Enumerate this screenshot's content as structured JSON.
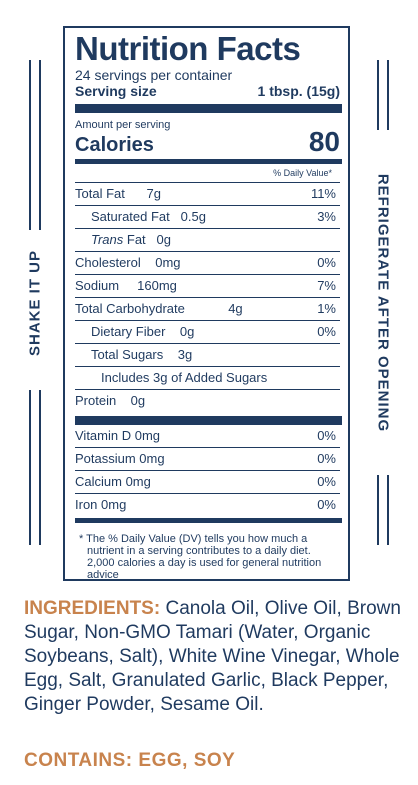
{
  "side": {
    "left_text": "SHAKE IT UP",
    "right_text": "REFRIGERATE AFTER OPENING"
  },
  "nutrition": {
    "title": "Nutrition Facts",
    "servings_per_container": "24 servings per container",
    "serving_size_label": "Serving size",
    "serving_size_value": "1 tbsp. (15g)",
    "amount_per_serving": "Amount per serving",
    "calories_label": "Calories",
    "calories_value": "80",
    "daily_value_header": "% Daily Value*",
    "rows": [
      {
        "label": "Total Fat",
        "amount": "7g",
        "dv": "11%"
      },
      {
        "label": "Saturated Fat",
        "amount": "0.5g",
        "dv": "3%"
      },
      {
        "label": "Trans",
        "suffix": "Fat",
        "amount": "0g",
        "dv": ""
      },
      {
        "label": "Cholesterol",
        "amount": "0mg",
        "dv": "0%"
      },
      {
        "label": "Sodium",
        "amount": "160mg",
        "dv": "7%"
      },
      {
        "label": "Total Carbohydrate",
        "amount": "4g",
        "dv": "1%"
      },
      {
        "label": "Dietary Fiber",
        "amount": "0g",
        "dv": "0%"
      },
      {
        "label": "Total Sugars",
        "amount": "3g",
        "dv": ""
      },
      {
        "label": "Includes 3g of Added Sugars",
        "amount": "",
        "dv": ""
      },
      {
        "label": "Protein",
        "amount": "0g",
        "dv": ""
      }
    ],
    "vitamins": [
      {
        "label": "Vitamin D 0mg",
        "dv": "0%"
      },
      {
        "label": "Potassium 0mg",
        "dv": "0%"
      },
      {
        "label": "Calcium 0mg",
        "dv": "0%"
      },
      {
        "label": "Iron 0mg",
        "dv": "0%"
      }
    ],
    "footnote_lines": [
      "* The % Daily Value (DV) tells you how much a",
      "nutrient in a serving contributes to a daily diet.",
      "2,000 calories a day is used for general nutrition",
      "advice"
    ]
  },
  "ingredients": {
    "label": "INGREDIENTS:",
    "text": "Canola Oil, Olive Oil, Brown Sugar, Non-GMO Tamari (Water, Organic Soybeans, Salt), White Wine Vinegar, Whole Egg, Salt, Granulated Garlic, Black Pepper, Ginger Powder, Sesame Oil."
  },
  "contains": "CONTAINS: EGG, SOY",
  "colors": {
    "navy": "#1f3a5f",
    "accent": "#c8834d"
  }
}
